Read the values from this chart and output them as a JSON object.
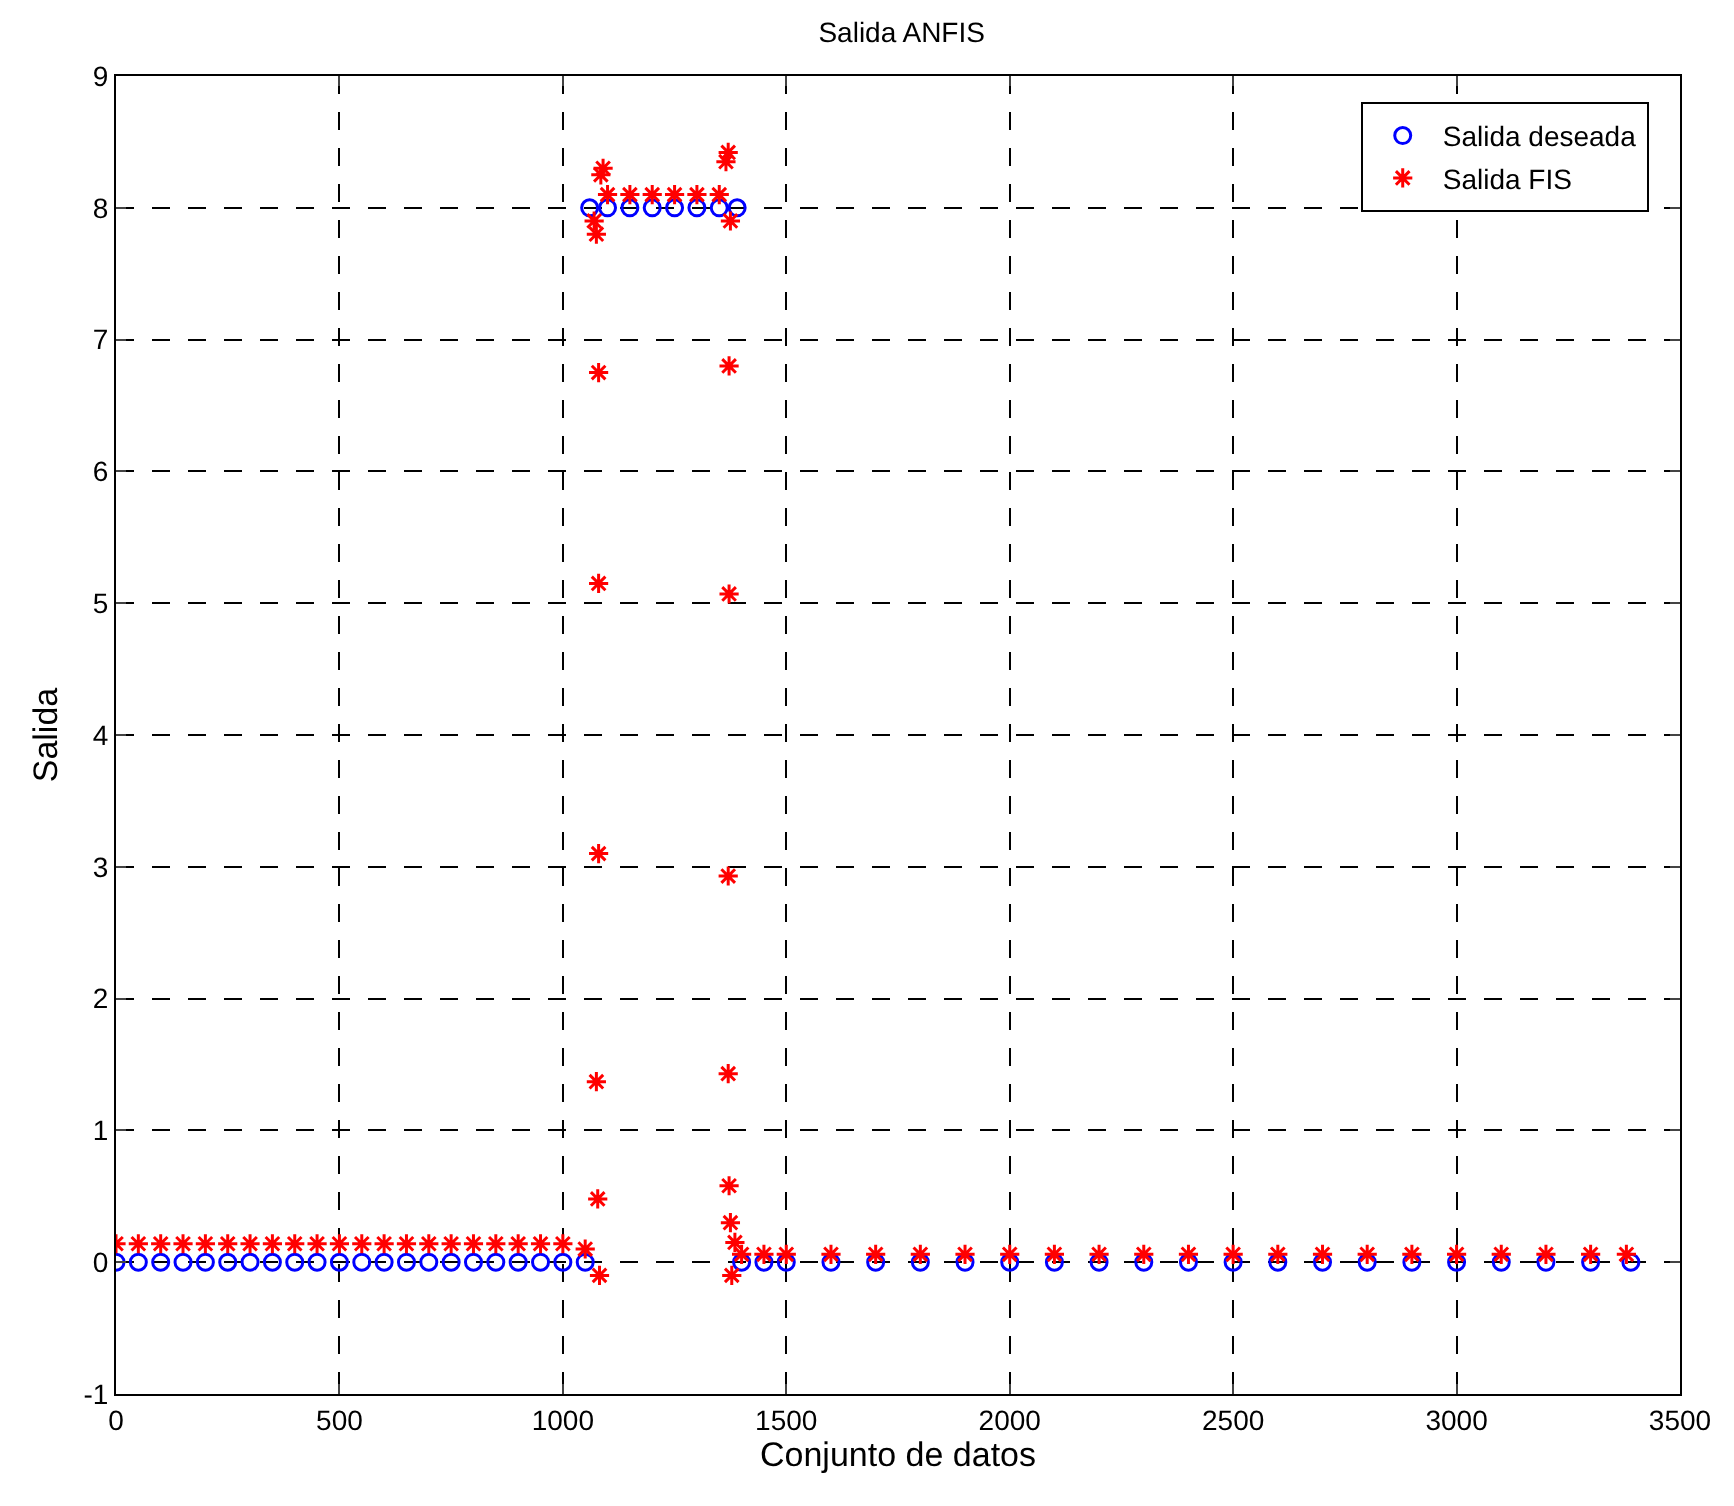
{
  "chart_data": {
    "type": "scatter",
    "title": "Salida ANFIS",
    "xlabel": "Conjunto de datos",
    "ylabel": "Salida",
    "xlim": [
      0,
      3500
    ],
    "xticks": [
      0,
      500,
      1000,
      1500,
      2000,
      2500,
      3000,
      3500
    ],
    "ylim": [
      -1,
      9
    ],
    "yticks": [
      -1,
      0,
      1,
      2,
      3,
      4,
      5,
      6,
      7,
      8,
      9
    ],
    "grid": true,
    "legend": "top right",
    "series": [
      {
        "name": "Salida deseada",
        "color": "#0000ff",
        "marker": "circle",
        "x": [
          0,
          50,
          100,
          150,
          200,
          250,
          300,
          350,
          400,
          450,
          500,
          550,
          600,
          650,
          700,
          750,
          800,
          850,
          900,
          950,
          1000,
          1050,
          1060,
          1100,
          1150,
          1200,
          1250,
          1300,
          1350,
          1390,
          1400,
          1450,
          1500,
          1600,
          1700,
          1800,
          1900,
          2000,
          2100,
          2200,
          2300,
          2400,
          2500,
          2600,
          2700,
          2800,
          2900,
          3000,
          3100,
          3200,
          3300,
          3390
        ],
        "values": [
          0,
          0,
          0,
          0,
          0,
          0,
          0,
          0,
          0,
          0,
          0,
          0,
          0,
          0,
          0,
          0,
          0,
          0,
          0,
          0,
          0,
          0,
          8,
          8,
          8,
          8,
          8,
          8,
          8,
          8,
          0,
          0,
          0,
          0,
          0,
          0,
          0,
          0,
          0,
          0,
          0,
          0,
          0,
          0,
          0,
          0,
          0,
          0,
          0,
          0,
          0,
          0
        ]
      },
      {
        "name": "Salida FIS",
        "color": "#ff0000",
        "marker": "cross",
        "x": [
          0,
          50,
          100,
          150,
          200,
          250,
          300,
          350,
          400,
          450,
          500,
          550,
          600,
          650,
          700,
          750,
          800,
          850,
          900,
          950,
          1000,
          1050,
          1070,
          1075,
          1080,
          1080,
          1080,
          1075,
          1078,
          1082,
          1085,
          1090,
          1100,
          1150,
          1200,
          1250,
          1300,
          1350,
          1365,
          1370,
          1375,
          1372,
          1372,
          1370,
          1370,
          1372,
          1375,
          1378,
          1385,
          1400,
          1450,
          1500,
          1600,
          1700,
          1800,
          1900,
          2000,
          2100,
          2200,
          2300,
          2400,
          2500,
          2600,
          2700,
          2800,
          2900,
          3000,
          3100,
          3200,
          3300,
          3380
        ],
        "values": [
          0.14,
          0.14,
          0.14,
          0.14,
          0.14,
          0.14,
          0.14,
          0.14,
          0.14,
          0.14,
          0.14,
          0.14,
          0.14,
          0.14,
          0.14,
          0.14,
          0.14,
          0.14,
          0.14,
          0.14,
          0.14,
          0.1,
          7.9,
          7.8,
          6.75,
          5.15,
          3.1,
          1.37,
          0.48,
          -0.1,
          8.25,
          8.3,
          8.1,
          8.1,
          8.1,
          8.1,
          8.1,
          8.1,
          8.35,
          8.42,
          7.9,
          6.8,
          5.07,
          2.93,
          1.43,
          0.58,
          0.3,
          -0.1,
          0.15,
          0.06,
          0.06,
          0.06,
          0.06,
          0.06,
          0.06,
          0.06,
          0.06,
          0.06,
          0.06,
          0.06,
          0.06,
          0.06,
          0.06,
          0.06,
          0.06,
          0.06,
          0.06,
          0.06,
          0.06,
          0.06,
          0.06
        ]
      }
    ]
  }
}
